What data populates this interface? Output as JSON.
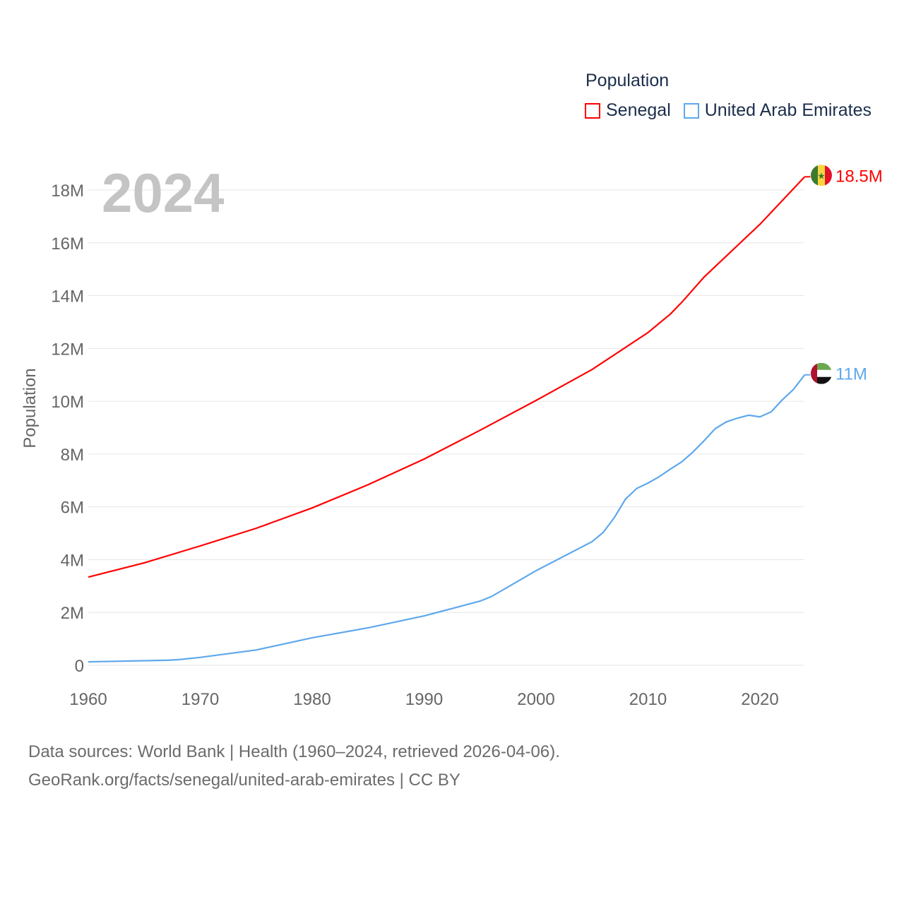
{
  "chart_data": {
    "type": "line",
    "title": "Population",
    "ylabel": "Population",
    "xlabel": "",
    "xlim": [
      1960,
      2024
    ],
    "ylim": [
      0,
      18000000
    ],
    "x_ticks": [
      "1960",
      "1970",
      "1980",
      "1990",
      "2000",
      "2010",
      "2020"
    ],
    "y_ticks": [
      "0",
      "2M",
      "4M",
      "6M",
      "8M",
      "10M",
      "12M",
      "14M",
      "16M",
      "18M"
    ],
    "grid": true,
    "legend_placement": "top-right",
    "current_year": "2024",
    "series": [
      {
        "name": "Senegal",
        "color": "#ff0000",
        "end_label": "18.5M",
        "flag": "senegal-flag",
        "x": [
          1960,
          1965,
          1970,
          1975,
          1980,
          1985,
          1990,
          1995,
          2000,
          2005,
          2010,
          2012,
          2013,
          2015,
          2020,
          2024
        ],
        "values": [
          3.34,
          3.88,
          4.52,
          5.19,
          5.96,
          6.84,
          7.81,
          8.9,
          10.03,
          11.2,
          12.6,
          13.3,
          13.74,
          14.7,
          16.7,
          18.5
        ]
      },
      {
        "name": "United Arab Emirates",
        "color": "#5fa8ec",
        "end_label": "11M",
        "flag": "uae-flag",
        "x": [
          1960,
          1967,
          1968,
          1970,
          1975,
          1980,
          1985,
          1990,
          1995,
          1996,
          2000,
          2005,
          2006,
          2007,
          2008,
          2009,
          2010,
          2011,
          2012,
          2013,
          2014,
          2015,
          2016,
          2017,
          2018,
          2019,
          2020,
          2021,
          2022,
          2023,
          2024
        ],
        "values": [
          0.13,
          0.19,
          0.21,
          0.3,
          0.58,
          1.04,
          1.42,
          1.87,
          2.43,
          2.6,
          3.58,
          4.68,
          5.03,
          5.6,
          6.3,
          6.7,
          6.9,
          7.14,
          7.43,
          7.7,
          8.07,
          8.5,
          8.96,
          9.22,
          9.36,
          9.47,
          9.41,
          9.6,
          10.05,
          10.45,
          11.0
        ]
      }
    ]
  },
  "legend": {
    "title": "Population",
    "items": [
      "Senegal",
      "United Arab Emirates"
    ]
  },
  "footer": {
    "line1": "Data sources: World Bank | Health (1960–2024, retrieved 2026-04-06).",
    "line2": "GeoRank.org/facts/senegal/united-arab-emirates | CC BY"
  }
}
